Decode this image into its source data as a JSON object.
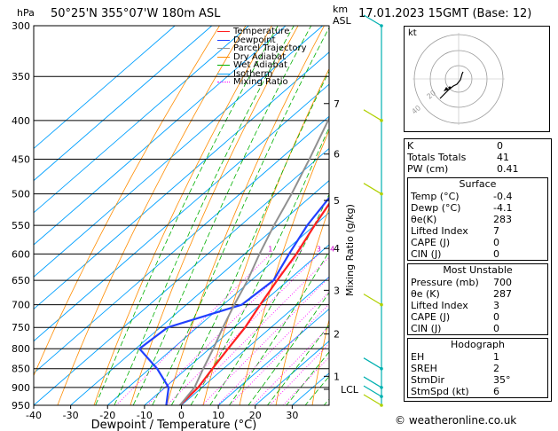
{
  "header": {
    "left": "50°25'N  355°07'W  180m  ASL",
    "right": "17.01.2023  15GMT  (Base: 12)",
    "hpa": "hPa",
    "km": "km",
    "asl": "ASL"
  },
  "legend": [
    {
      "label": "Temperature",
      "color": "#ff2020"
    },
    {
      "label": "Dewpoint",
      "color": "#2040ff"
    },
    {
      "label": "Parcel Trajectory",
      "color": "#909090"
    },
    {
      "label": "Dry Adiabat",
      "color": "#ff8c00"
    },
    {
      "label": "Wet Adiabat",
      "color": "#00b000"
    },
    {
      "label": "Isotherm",
      "color": "#00a0ff"
    },
    {
      "label": "Mixing Ratio",
      "color": "#ff00ff"
    }
  ],
  "hodograph": {
    "label": "kt",
    "ring_labels": [
      "20",
      "40"
    ]
  },
  "stats": {
    "top": [
      {
        "k": "K",
        "v": "0"
      },
      {
        "k": "Totals Totals",
        "v": "41"
      },
      {
        "k": "PW (cm)",
        "v": "0.41"
      }
    ],
    "surface_title": "Surface",
    "surface": [
      {
        "k": "Temp (°C)",
        "v": "-0.4"
      },
      {
        "k": "Dewp (°C)",
        "v": "-4.1"
      },
      {
        "k": "θe(K)",
        "v": "283"
      },
      {
        "k": "Lifted Index",
        "v": "7"
      },
      {
        "k": "CAPE (J)",
        "v": "0"
      },
      {
        "k": "CIN (J)",
        "v": "0"
      }
    ],
    "mu_title": "Most Unstable",
    "mu": [
      {
        "k": "Pressure (mb)",
        "v": "700"
      },
      {
        "k": "θe (K)",
        "v": "287"
      },
      {
        "k": "Lifted Index",
        "v": "3"
      },
      {
        "k": "CAPE (J)",
        "v": "0"
      },
      {
        "k": "CIN (J)",
        "v": "0"
      }
    ],
    "hodo_title": "Hodograph",
    "hodo": [
      {
        "k": "EH",
        "v": "1"
      },
      {
        "k": "SREH",
        "v": "2"
      },
      {
        "k": "StmDir",
        "v": "35°"
      },
      {
        "k": "StmSpd (kt)",
        "v": "6"
      }
    ]
  },
  "footer": "© weatheronline.co.uk",
  "chart_data": {
    "type": "line",
    "xlabel": "Dewpoint / Temperature (°C)",
    "ylabel": "hPa",
    "y2label": "Mixing Ratio (g/kg)",
    "xlim": [
      -40,
      40
    ],
    "ylim": [
      950,
      300
    ],
    "log_y": true,
    "pressure_ticks": [
      300,
      350,
      400,
      450,
      500,
      550,
      600,
      650,
      700,
      750,
      800,
      850,
      900,
      950
    ],
    "temp_ticks": [
      -40,
      -30,
      -20,
      -10,
      0,
      10,
      20,
      30
    ],
    "km_ticks": [
      {
        "label": "7",
        "p": 380
      },
      {
        "label": "6",
        "p": 443
      },
      {
        "label": "5",
        "p": 510
      },
      {
        "label": "4",
        "p": 590
      },
      {
        "label": "3",
        "p": 670
      },
      {
        "label": "2",
        "p": 765
      },
      {
        "label": "1",
        "p": 870
      },
      {
        "label": "LCL",
        "p": 905
      }
    ],
    "mixing_ratio_labels": [
      "1",
      "2",
      "3",
      "4",
      "6",
      "8",
      "10",
      "15",
      "20",
      "25"
    ],
    "mixing_ratio_values": [
      1,
      2,
      3,
      4,
      6,
      8,
      10,
      15,
      20,
      25
    ],
    "series": [
      {
        "name": "Temperature",
        "points": [
          [
            -0.4,
            950
          ],
          [
            -1,
            900
          ],
          [
            -3,
            850
          ],
          [
            -5,
            800
          ],
          [
            -7,
            750
          ],
          [
            -10,
            700
          ],
          [
            -13,
            650
          ],
          [
            -16,
            600
          ],
          [
            -20,
            550
          ],
          [
            -24,
            500
          ],
          [
            -29,
            450
          ],
          [
            -35,
            400
          ],
          [
            -41,
            350
          ],
          [
            -45,
            300
          ]
        ]
      },
      {
        "name": "Dewpoint",
        "points": [
          [
            -4.1,
            950
          ],
          [
            -9,
            900
          ],
          [
            -18,
            850
          ],
          [
            -29,
            800
          ],
          [
            -28,
            750
          ],
          [
            -15,
            700
          ],
          [
            -14,
            650
          ],
          [
            -18,
            600
          ],
          [
            -22,
            550
          ],
          [
            -25,
            500
          ],
          [
            -30,
            450
          ],
          [
            -36,
            400
          ],
          [
            -42,
            350
          ],
          [
            -50,
            300
          ]
        ]
      },
      {
        "name": "Parcel Trajectory",
        "points": [
          [
            -0.4,
            950
          ],
          [
            -2,
            900
          ],
          [
            -5.5,
            850
          ],
          [
            -9,
            800
          ],
          [
            -13,
            750
          ],
          [
            -17,
            700
          ],
          [
            -21,
            650
          ],
          [
            -26,
            600
          ],
          [
            -31,
            550
          ],
          [
            -36,
            500
          ],
          [
            -42,
            450
          ],
          [
            -49,
            400
          ],
          [
            -56,
            350
          ],
          [
            -63,
            300
          ]
        ]
      }
    ]
  }
}
